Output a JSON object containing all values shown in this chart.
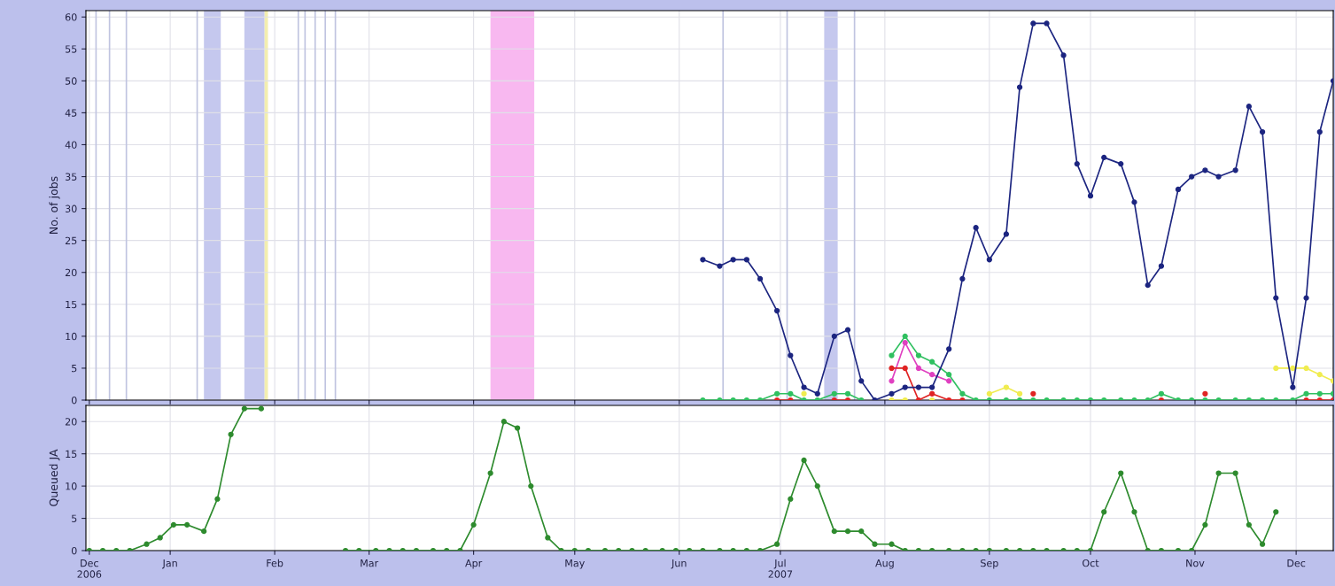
{
  "chart_data": [
    {
      "type": "line",
      "ylabel": "No. of jobs",
      "ylim": [
        0,
        61
      ],
      "yticks": [
        0,
        5,
        10,
        15,
        20,
        25,
        30,
        35,
        40,
        45,
        50,
        55,
        60
      ],
      "xlim": [
        "2006-12-07",
        "2007-12-12"
      ],
      "xticks": [
        {
          "value": "2006-12-08",
          "label": null
        },
        {
          "value": "2007-01-01",
          "label": null
        },
        {
          "value": "2007-02-01",
          "label": null
        },
        {
          "value": "2007-03-01",
          "label": null
        },
        {
          "value": "2007-04-01",
          "label": null
        },
        {
          "value": "2007-05-01",
          "label": null
        },
        {
          "value": "2007-06-01",
          "label": null
        },
        {
          "value": "2007-07-01",
          "label": null
        },
        {
          "value": "2007-08-01",
          "label": null
        },
        {
          "value": "2007-09-01",
          "label": null
        },
        {
          "value": "2007-10-01",
          "label": null
        },
        {
          "value": "2007-11-01",
          "label": null
        },
        {
          "value": "2007-12-01",
          "label": null
        }
      ],
      "tick_labels": "y",
      "grid": true,
      "marker": "circle",
      "line_style": "solid",
      "x": [
        "2007-06-08",
        "2007-06-13",
        "2007-06-17",
        "2007-06-21",
        "2007-06-25",
        "2007-06-30",
        "2007-07-04",
        "2007-07-08",
        "2007-07-12",
        "2007-07-17",
        "2007-07-21",
        "2007-07-25",
        "2007-07-29",
        "2007-08-03",
        "2007-08-07",
        "2007-08-11",
        "2007-08-15",
        "2007-08-20",
        "2007-08-24",
        "2007-08-28",
        "2007-09-01",
        "2007-09-06",
        "2007-09-10",
        "2007-09-14",
        "2007-09-18",
        "2007-09-23",
        "2007-09-27",
        "2007-10-01",
        "2007-10-05",
        "2007-10-10",
        "2007-10-14",
        "2007-10-18",
        "2007-10-22",
        "2007-10-27",
        "2007-10-31",
        "2007-11-04",
        "2007-11-08",
        "2007-11-13",
        "2007-11-17",
        "2007-11-21",
        "2007-11-25",
        "2007-11-30",
        "2007-12-04",
        "2007-12-08",
        "2007-12-12"
      ],
      "series": [
        {
          "color": "#f0ec50",
          "values": [
            null,
            null,
            null,
            null,
            null,
            null,
            null,
            1,
            null,
            null,
            null,
            null,
            null,
            0,
            0,
            null,
            0,
            null,
            null,
            null,
            1,
            2,
            1,
            null,
            null,
            null,
            null,
            null,
            null,
            null,
            null,
            null,
            null,
            null,
            null,
            null,
            null,
            null,
            null,
            null,
            5,
            5,
            5,
            4,
            3
          ]
        },
        {
          "color": "#e040c0",
          "values": [
            null,
            null,
            null,
            null,
            null,
            null,
            null,
            null,
            null,
            null,
            null,
            null,
            null,
            3,
            9,
            5,
            4,
            3,
            null,
            null,
            null,
            null,
            null,
            null,
            null,
            null,
            null,
            null,
            null,
            null,
            null,
            null,
            null,
            null,
            null,
            null,
            null,
            null,
            null,
            null,
            null,
            null,
            null,
            null,
            null
          ]
        },
        {
          "color": "#e02424",
          "values": [
            null,
            null,
            null,
            null,
            null,
            0,
            0,
            null,
            null,
            0,
            0,
            null,
            null,
            5,
            5,
            0,
            1,
            0,
            0,
            null,
            null,
            null,
            null,
            1,
            null,
            null,
            null,
            null,
            null,
            null,
            null,
            null,
            0,
            null,
            null,
            1,
            null,
            null,
            null,
            null,
            null,
            null,
            0,
            0,
            0
          ]
        },
        {
          "color": "#30c060",
          "values": [
            0,
            0,
            0,
            0,
            0,
            1,
            1,
            0,
            0,
            1,
            1,
            0,
            null,
            7,
            10,
            7,
            6,
            4,
            1,
            0,
            0,
            0,
            0,
            0,
            0,
            0,
            0,
            0,
            0,
            0,
            0,
            0,
            1,
            0,
            0,
            0,
            0,
            0,
            0,
            0,
            0,
            0,
            1,
            1,
            1
          ]
        },
        {
          "color": "#1c2580",
          "values": [
            22,
            21,
            22,
            22,
            19,
            14,
            7,
            2,
            1,
            10,
            11,
            3,
            0,
            1,
            2,
            2,
            2,
            8,
            19,
            27,
            22,
            26,
            49,
            59,
            59,
            54,
            37,
            32,
            38,
            37,
            31,
            18,
            21,
            33,
            35,
            36,
            35,
            36,
            46,
            42,
            16,
            2,
            16,
            42,
            50
          ]
        }
      ],
      "bands": [
        {
          "axis": "x",
          "from": "2007-01-11",
          "to": "2007-01-16",
          "color": "#c5c8ee"
        },
        {
          "axis": "x",
          "from": "2007-01-23",
          "to": "2007-01-29",
          "color": "#c5c8ee"
        },
        {
          "axis": "x",
          "from": "2007-01-29",
          "to": "2007-01-30",
          "color": "#f3eeb0"
        },
        {
          "axis": "x",
          "from": "2007-04-06",
          "to": "2007-04-19",
          "color": "#f8b8f0"
        },
        {
          "axis": "x",
          "from": "2007-07-14",
          "to": "2007-07-18",
          "color": "#c5c8ee"
        }
      ],
      "ref_lines": [
        {
          "axis": "x",
          "value": "2006-12-10",
          "color": "#c0c4e0"
        },
        {
          "axis": "x",
          "value": "2006-12-14",
          "color": "#c0c4e0"
        },
        {
          "axis": "x",
          "value": "2006-12-19",
          "color": "#c0c4e0"
        },
        {
          "axis": "x",
          "value": "2007-01-09",
          "color": "#c0c4e0"
        },
        {
          "axis": "x",
          "value": "2007-02-08",
          "color": "#c0c4e0"
        },
        {
          "axis": "x",
          "value": "2007-02-10",
          "color": "#c0c4e0"
        },
        {
          "axis": "x",
          "value": "2007-02-13",
          "color": "#c0c4e0"
        },
        {
          "axis": "x",
          "value": "2007-02-16",
          "color": "#c0c4e0"
        },
        {
          "axis": "x",
          "value": "2007-02-19",
          "color": "#c0c4e0"
        },
        {
          "axis": "x",
          "value": "2007-06-14",
          "color": "#c0c4e0"
        },
        {
          "axis": "x",
          "value": "2007-07-03",
          "color": "#c0c4e0"
        },
        {
          "axis": "x",
          "value": "2007-07-23",
          "color": "#c0c4e0"
        }
      ]
    },
    {
      "type": "line",
      "ylabel": "Queued JA",
      "ylim": [
        0,
        22.5
      ],
      "yticks": [
        0,
        5,
        10,
        15,
        20
      ],
      "xlim": [
        "2006-12-07",
        "2007-12-12"
      ],
      "xticks": [
        {
          "value": "2006-12-08",
          "label": "Dec\n2006"
        },
        {
          "value": "2007-01-01",
          "label": "Jan"
        },
        {
          "value": "2007-02-01",
          "label": "Feb"
        },
        {
          "value": "2007-03-01",
          "label": "Mar"
        },
        {
          "value": "2007-04-01",
          "label": "Apr"
        },
        {
          "value": "2007-05-01",
          "label": "May"
        },
        {
          "value": "2007-06-01",
          "label": "Jun"
        },
        {
          "value": "2007-07-01",
          "label": "Jul\n2007"
        },
        {
          "value": "2007-08-01",
          "label": "Aug"
        },
        {
          "value": "2007-09-01",
          "label": "Sep"
        },
        {
          "value": "2007-10-01",
          "label": "Oct"
        },
        {
          "value": "2007-11-01",
          "label": "Nov"
        },
        {
          "value": "2007-12-01",
          "label": "Dec"
        }
      ],
      "grid": true,
      "marker": "circle",
      "line_style": "solid",
      "x": [
        "2006-12-08",
        "2006-12-12",
        "2006-12-16",
        "2006-12-20",
        "2006-12-25",
        "2006-12-29",
        "2007-01-02",
        "2007-01-06",
        "2007-01-11",
        "2007-01-15",
        "2007-01-19",
        "2007-01-23",
        "2007-01-28",
        "2007-02-01",
        "2007-02-05",
        "2007-02-09",
        "2007-02-14",
        "2007-02-18",
        "2007-02-22",
        "2007-02-26",
        "2007-03-03",
        "2007-03-07",
        "2007-03-11",
        "2007-03-15",
        "2007-03-20",
        "2007-03-24",
        "2007-03-28",
        "2007-04-01",
        "2007-04-06",
        "2007-04-10",
        "2007-04-14",
        "2007-04-18",
        "2007-04-23",
        "2007-04-27",
        "2007-05-01",
        "2007-05-05",
        "2007-05-10",
        "2007-05-14",
        "2007-05-18",
        "2007-05-22",
        "2007-05-27",
        "2007-05-31",
        "2007-06-04",
        "2007-06-08",
        "2007-06-13",
        "2007-06-17",
        "2007-06-21",
        "2007-06-25",
        "2007-06-30",
        "2007-07-04",
        "2007-07-08",
        "2007-07-12",
        "2007-07-17",
        "2007-07-21",
        "2007-07-25",
        "2007-07-29",
        "2007-08-03",
        "2007-08-07",
        "2007-08-11",
        "2007-08-15",
        "2007-08-20",
        "2007-08-24",
        "2007-08-28",
        "2007-09-01",
        "2007-09-06",
        "2007-09-10",
        "2007-09-14",
        "2007-09-18",
        "2007-09-23",
        "2007-09-27",
        "2007-10-01",
        "2007-10-05",
        "2007-10-10",
        "2007-10-14",
        "2007-10-18",
        "2007-10-22",
        "2007-10-27",
        "2007-10-31",
        "2007-11-04",
        "2007-11-08",
        "2007-11-13",
        "2007-11-17",
        "2007-11-21",
        "2007-11-25"
      ],
      "series": [
        {
          "color": "#2e8b2e",
          "values": [
            0,
            0,
            0,
            0,
            1,
            2,
            4,
            4,
            3,
            8,
            18,
            22,
            22,
            null,
            null,
            null,
            null,
            null,
            0,
            0,
            0,
            0,
            0,
            0,
            0,
            0,
            0,
            4,
            12,
            20,
            19,
            10,
            2,
            0,
            0,
            0,
            0,
            0,
            0,
            0,
            0,
            0,
            0,
            0,
            0,
            0,
            0,
            0,
            1,
            8,
            14,
            10,
            3,
            3,
            3,
            1,
            1,
            0,
            0,
            0,
            0,
            0,
            0,
            0,
            0,
            0,
            0,
            0,
            0,
            0,
            0,
            6,
            12,
            6,
            0,
            0,
            0,
            0,
            4,
            12,
            12,
            4,
            1,
            6
          ]
        }
      ]
    }
  ]
}
